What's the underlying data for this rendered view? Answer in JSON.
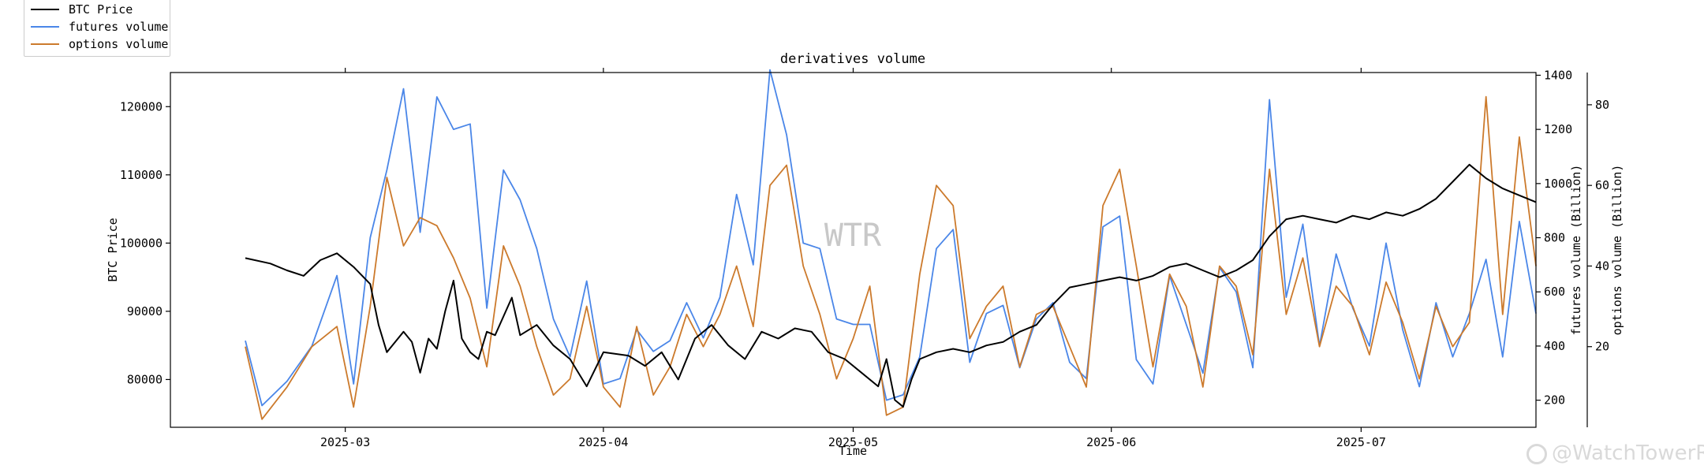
{
  "chart_data": {
    "type": "line",
    "title": "derivatives volume",
    "xlabel": "Time",
    "y_axes": {
      "left": {
        "label": "BTC Price",
        "ticks": [
          80000,
          90000,
          100000,
          110000,
          120000
        ],
        "ylim": [
          73000,
          125000
        ]
      },
      "right1": {
        "label": "futures volume (Billion)",
        "ticks": [
          200,
          400,
          600,
          800,
          1000,
          1200,
          1400
        ],
        "ylim": [
          100,
          1410
        ]
      },
      "right2": {
        "label": "options volume (Billion)",
        "ticks": [
          20,
          40,
          60,
          80
        ],
        "ylim": [
          0,
          88
        ]
      }
    },
    "x_tick_labels": [
      "2025-03",
      "2025-04",
      "2025-05",
      "2025-06",
      "2025-07"
    ],
    "xlim": [
      "2025-02-08",
      "2025-07-22"
    ],
    "watermark": "WTR",
    "legend": {
      "placement": "top-left",
      "entries": [
        "BTC Price",
        "futures volume",
        "options volume"
      ]
    },
    "grid": false,
    "colors": {
      "btc": "#000000",
      "futures": "#4a86e8",
      "options": "#cc7a2c"
    },
    "series": [
      {
        "name": "BTC Price",
        "axis": "left",
        "points": [
          [
            "2025-02-17",
            97800
          ],
          [
            "2025-02-20",
            97000
          ],
          [
            "2025-02-22",
            96000
          ],
          [
            "2025-02-24",
            95200
          ],
          [
            "2025-02-26",
            97500
          ],
          [
            "2025-02-28",
            98500
          ],
          [
            "2025-03-02",
            96500
          ],
          [
            "2025-03-04",
            94000
          ],
          [
            "2025-03-05",
            88000
          ],
          [
            "2025-03-06",
            84000
          ],
          [
            "2025-03-08",
            87000
          ],
          [
            "2025-03-09",
            85500
          ],
          [
            "2025-03-10",
            81000
          ],
          [
            "2025-03-11",
            86000
          ],
          [
            "2025-03-12",
            84500
          ],
          [
            "2025-03-13",
            90000
          ],
          [
            "2025-03-14",
            94500
          ],
          [
            "2025-03-15",
            86000
          ],
          [
            "2025-03-16",
            84000
          ],
          [
            "2025-03-17",
            83000
          ],
          [
            "2025-03-18",
            87000
          ],
          [
            "2025-03-19",
            86500
          ],
          [
            "2025-03-21",
            92000
          ],
          [
            "2025-03-22",
            86500
          ],
          [
            "2025-03-24",
            88000
          ],
          [
            "2025-03-26",
            85000
          ],
          [
            "2025-03-28",
            83000
          ],
          [
            "2025-03-30",
            79000
          ],
          [
            "2025-04-01",
            84000
          ],
          [
            "2025-04-04",
            83500
          ],
          [
            "2025-04-06",
            82000
          ],
          [
            "2025-04-08",
            84000
          ],
          [
            "2025-04-10",
            80000
          ],
          [
            "2025-04-12",
            86000
          ],
          [
            "2025-04-14",
            88000
          ],
          [
            "2025-04-16",
            85000
          ],
          [
            "2025-04-18",
            83000
          ],
          [
            "2025-04-20",
            87000
          ],
          [
            "2025-04-22",
            86000
          ],
          [
            "2025-04-24",
            87500
          ],
          [
            "2025-04-26",
            87000
          ],
          [
            "2025-04-28",
            84000
          ],
          [
            "2025-04-30",
            83000
          ],
          [
            "2025-05-02",
            81000
          ],
          [
            "2025-05-04",
            79000
          ],
          [
            "2025-05-05",
            83000
          ],
          [
            "2025-05-06",
            77000
          ],
          [
            "2025-05-07",
            76000
          ],
          [
            "2025-05-08",
            80000
          ],
          [
            "2025-05-09",
            83000
          ],
          [
            "2025-05-11",
            84000
          ],
          [
            "2025-05-13",
            84500
          ],
          [
            "2025-05-15",
            84000
          ],
          [
            "2025-05-17",
            85000
          ],
          [
            "2025-05-19",
            85500
          ],
          [
            "2025-05-21",
            87000
          ],
          [
            "2025-05-23",
            88000
          ],
          [
            "2025-05-25",
            91000
          ],
          [
            "2025-05-27",
            93500
          ],
          [
            "2025-05-29",
            94000
          ],
          [
            "2025-05-31",
            94500
          ],
          [
            "2025-06-02",
            95000
          ],
          [
            "2025-06-04",
            94500
          ],
          [
            "2025-06-06",
            95200
          ],
          [
            "2025-06-08",
            96500
          ],
          [
            "2025-06-10",
            97000
          ],
          [
            "2025-06-12",
            96000
          ],
          [
            "2025-06-14",
            95000
          ],
          [
            "2025-06-16",
            96000
          ],
          [
            "2025-06-18",
            97500
          ],
          [
            "2025-06-20",
            101000
          ],
          [
            "2025-06-22",
            103500
          ],
          [
            "2025-06-24",
            104000
          ],
          [
            "2025-06-26",
            103500
          ],
          [
            "2025-06-28",
            103000
          ],
          [
            "2025-06-30",
            104000
          ],
          [
            "2025-07-02",
            103500
          ],
          [
            "2025-07-04",
            104500
          ],
          [
            "2025-07-06",
            104000
          ],
          [
            "2025-07-08",
            105000
          ],
          [
            "2025-07-10",
            106500
          ],
          [
            "2025-07-12",
            109000
          ],
          [
            "2025-07-14",
            111500
          ],
          [
            "2025-07-16",
            109500
          ],
          [
            "2025-07-18",
            108000
          ],
          [
            "2025-07-20",
            107000
          ],
          [
            "2025-07-22",
            106000
          ]
        ]
      },
      {
        "name": "futures volume",
        "axis": "right1",
        "points": [
          [
            "2025-02-17",
            420
          ],
          [
            "2025-02-19",
            180
          ],
          [
            "2025-02-22",
            270
          ],
          [
            "2025-02-25",
            400
          ],
          [
            "2025-02-28",
            660
          ],
          [
            "2025-03-02",
            260
          ],
          [
            "2025-03-04",
            800
          ],
          [
            "2025-03-06",
            1050
          ],
          [
            "2025-03-08",
            1350
          ],
          [
            "2025-03-10",
            820
          ],
          [
            "2025-03-12",
            1320
          ],
          [
            "2025-03-14",
            1200
          ],
          [
            "2025-03-16",
            1220
          ],
          [
            "2025-03-18",
            540
          ],
          [
            "2025-03-20",
            1050
          ],
          [
            "2025-03-22",
            940
          ],
          [
            "2025-03-24",
            760
          ],
          [
            "2025-03-26",
            500
          ],
          [
            "2025-03-28",
            360
          ],
          [
            "2025-03-30",
            640
          ],
          [
            "2025-04-01",
            260
          ],
          [
            "2025-04-03",
            280
          ],
          [
            "2025-04-05",
            460
          ],
          [
            "2025-04-07",
            380
          ],
          [
            "2025-04-09",
            420
          ],
          [
            "2025-04-11",
            560
          ],
          [
            "2025-04-13",
            430
          ],
          [
            "2025-04-15",
            580
          ],
          [
            "2025-04-17",
            960
          ],
          [
            "2025-04-19",
            700
          ],
          [
            "2025-04-21",
            1420
          ],
          [
            "2025-04-23",
            1180
          ],
          [
            "2025-04-25",
            780
          ],
          [
            "2025-04-27",
            760
          ],
          [
            "2025-04-29",
            500
          ],
          [
            "2025-05-01",
            480
          ],
          [
            "2025-05-03",
            480
          ],
          [
            "2025-05-05",
            200
          ],
          [
            "2025-05-07",
            220
          ],
          [
            "2025-05-09",
            360
          ],
          [
            "2025-05-11",
            760
          ],
          [
            "2025-05-13",
            830
          ],
          [
            "2025-05-15",
            340
          ],
          [
            "2025-05-17",
            520
          ],
          [
            "2025-05-19",
            550
          ],
          [
            "2025-05-21",
            320
          ],
          [
            "2025-05-23",
            500
          ],
          [
            "2025-05-25",
            560
          ],
          [
            "2025-05-27",
            340
          ],
          [
            "2025-05-29",
            280
          ],
          [
            "2025-05-31",
            840
          ],
          [
            "2025-06-02",
            880
          ],
          [
            "2025-06-04",
            350
          ],
          [
            "2025-06-06",
            260
          ],
          [
            "2025-06-08",
            660
          ],
          [
            "2025-06-10",
            480
          ],
          [
            "2025-06-12",
            300
          ],
          [
            "2025-06-14",
            690
          ],
          [
            "2025-06-16",
            600
          ],
          [
            "2025-06-18",
            320
          ],
          [
            "2025-06-20",
            1310
          ],
          [
            "2025-06-22",
            580
          ],
          [
            "2025-06-24",
            850
          ],
          [
            "2025-06-26",
            400
          ],
          [
            "2025-06-28",
            740
          ],
          [
            "2025-06-30",
            540
          ],
          [
            "2025-07-02",
            400
          ],
          [
            "2025-07-04",
            780
          ],
          [
            "2025-07-06",
            460
          ],
          [
            "2025-07-08",
            250
          ],
          [
            "2025-07-10",
            560
          ],
          [
            "2025-07-12",
            360
          ],
          [
            "2025-07-14",
            520
          ],
          [
            "2025-07-16",
            720
          ],
          [
            "2025-07-18",
            360
          ],
          [
            "2025-07-20",
            860
          ],
          [
            "2025-07-22",
            520
          ]
        ]
      },
      {
        "name": "options volume",
        "axis": "right2",
        "points": [
          [
            "2025-02-17",
            20
          ],
          [
            "2025-02-19",
            2
          ],
          [
            "2025-02-22",
            10
          ],
          [
            "2025-02-25",
            20
          ],
          [
            "2025-02-28",
            25
          ],
          [
            "2025-03-02",
            5
          ],
          [
            "2025-03-04",
            30
          ],
          [
            "2025-03-06",
            62
          ],
          [
            "2025-03-08",
            45
          ],
          [
            "2025-03-10",
            52
          ],
          [
            "2025-03-12",
            50
          ],
          [
            "2025-03-14",
            42
          ],
          [
            "2025-03-16",
            32
          ],
          [
            "2025-03-18",
            15
          ],
          [
            "2025-03-20",
            45
          ],
          [
            "2025-03-22",
            35
          ],
          [
            "2025-03-24",
            20
          ],
          [
            "2025-03-26",
            8
          ],
          [
            "2025-03-28",
            12
          ],
          [
            "2025-03-30",
            30
          ],
          [
            "2025-04-01",
            10
          ],
          [
            "2025-04-03",
            5
          ],
          [
            "2025-04-05",
            25
          ],
          [
            "2025-04-07",
            8
          ],
          [
            "2025-04-09",
            15
          ],
          [
            "2025-04-11",
            28
          ],
          [
            "2025-04-13",
            20
          ],
          [
            "2025-04-15",
            28
          ],
          [
            "2025-04-17",
            40
          ],
          [
            "2025-04-19",
            25
          ],
          [
            "2025-04-21",
            60
          ],
          [
            "2025-04-23",
            65
          ],
          [
            "2025-04-25",
            40
          ],
          [
            "2025-04-27",
            28
          ],
          [
            "2025-04-29",
            12
          ],
          [
            "2025-05-01",
            22
          ],
          [
            "2025-05-03",
            35
          ],
          [
            "2025-05-05",
            3
          ],
          [
            "2025-05-07",
            5
          ],
          [
            "2025-05-09",
            38
          ],
          [
            "2025-05-11",
            60
          ],
          [
            "2025-05-13",
            55
          ],
          [
            "2025-05-15",
            22
          ],
          [
            "2025-05-17",
            30
          ],
          [
            "2025-05-19",
            35
          ],
          [
            "2025-05-21",
            15
          ],
          [
            "2025-05-23",
            28
          ],
          [
            "2025-05-25",
            30
          ],
          [
            "2025-05-27",
            20
          ],
          [
            "2025-05-29",
            10
          ],
          [
            "2025-05-31",
            55
          ],
          [
            "2025-06-02",
            64
          ],
          [
            "2025-06-04",
            40
          ],
          [
            "2025-06-06",
            15
          ],
          [
            "2025-06-08",
            38
          ],
          [
            "2025-06-10",
            30
          ],
          [
            "2025-06-12",
            10
          ],
          [
            "2025-06-14",
            40
          ],
          [
            "2025-06-16",
            35
          ],
          [
            "2025-06-18",
            18
          ],
          [
            "2025-06-20",
            64
          ],
          [
            "2025-06-22",
            28
          ],
          [
            "2025-06-24",
            42
          ],
          [
            "2025-06-26",
            20
          ],
          [
            "2025-06-28",
            35
          ],
          [
            "2025-06-30",
            30
          ],
          [
            "2025-07-02",
            18
          ],
          [
            "2025-07-04",
            36
          ],
          [
            "2025-07-06",
            26
          ],
          [
            "2025-07-08",
            12
          ],
          [
            "2025-07-10",
            30
          ],
          [
            "2025-07-12",
            20
          ],
          [
            "2025-07-14",
            26
          ],
          [
            "2025-07-16",
            82
          ],
          [
            "2025-07-18",
            28
          ],
          [
            "2025-07-20",
            72
          ],
          [
            "2025-07-22",
            40
          ]
        ]
      }
    ]
  }
}
